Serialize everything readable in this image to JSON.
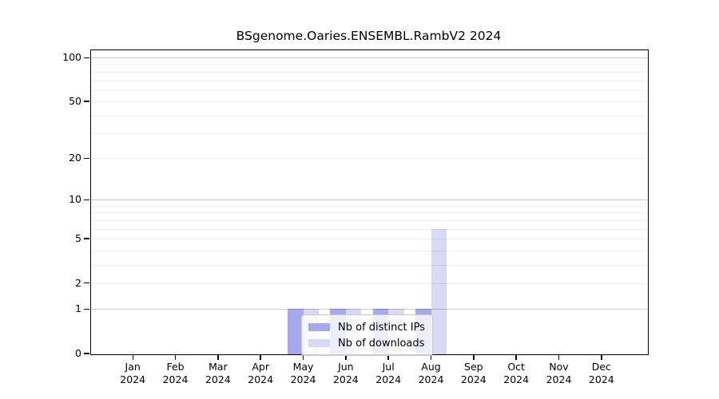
{
  "title": "BSgenome.Oaries.ENSEMBL.RambV2 2024",
  "chart_data": {
    "type": "bar",
    "title": "BSgenome.Oaries.ENSEMBL.RambV2 2024",
    "categories": [
      "Jan 2024",
      "Feb 2024",
      "Mar 2024",
      "Apr 2024",
      "May 2024",
      "Jun 2024",
      "Jul 2024",
      "Aug 2024",
      "Sep 2024",
      "Oct 2024",
      "Nov 2024",
      "Dec 2024"
    ],
    "series": [
      {
        "name": "Nb of distinct IPs",
        "color": "#a8a8ee",
        "values": [
          0,
          0,
          0,
          0,
          1,
          1,
          1,
          1,
          0,
          0,
          0,
          0
        ]
      },
      {
        "name": "Nb of downloads",
        "color": "#d9d9f6",
        "values": [
          0,
          0,
          0,
          0,
          1,
          1,
          1,
          6,
          0,
          0,
          0,
          0
        ]
      }
    ],
    "xlabel": "",
    "ylabel": "",
    "yscale": "log1p",
    "yticks": [
      0,
      1,
      2,
      5,
      10,
      20,
      50,
      100
    ],
    "ylim": [
      0,
      111
    ],
    "grid": true,
    "gridlines_major": [
      1,
      10,
      100
    ],
    "gridlines_minor": [
      2,
      3,
      4,
      5,
      6,
      7,
      8,
      9,
      20,
      30,
      40,
      50,
      60,
      70,
      80,
      90
    ],
    "legend_position": "inside-bottom-center",
    "colors": {
      "axis": "#000000",
      "grid_major": "#c9c9c9",
      "grid_minor": "#efefef",
      "background": "#ffffff"
    }
  }
}
